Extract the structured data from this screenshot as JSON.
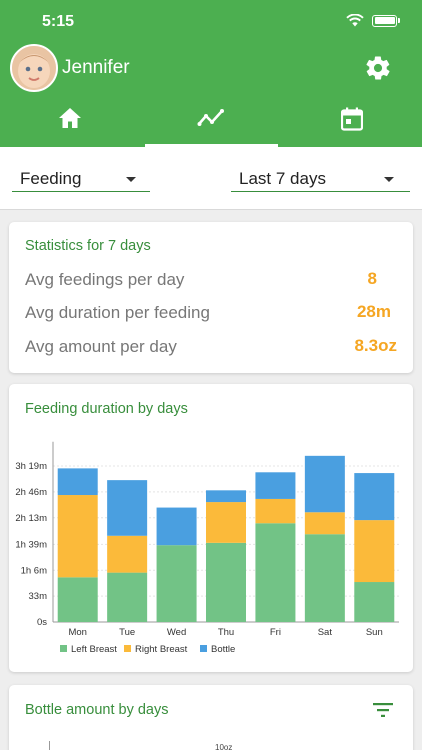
{
  "status_bar": {
    "time": "5:15",
    "wifi_icon": "wifi-icon",
    "battery_icon": "battery-icon"
  },
  "header": {
    "user_name": "Jennifer",
    "avatar": "baby-avatar",
    "settings_icon": "gear-icon",
    "tabs": [
      {
        "icon": "home-icon"
      },
      {
        "icon": "trend-line-icon",
        "active": true
      },
      {
        "icon": "calendar-icon"
      }
    ],
    "color": "#4caf50"
  },
  "filters": {
    "type_value": "Feeding",
    "range_value": "Last 7 days"
  },
  "statistics": {
    "title": "Statistics for 7 days",
    "rows": [
      {
        "label": "Avg feedings per day",
        "value": "8"
      },
      {
        "label": "Avg duration per feeding",
        "value": "28m"
      },
      {
        "label": "Avg amount per day",
        "value": "8.3oz"
      }
    ]
  },
  "duration_card": {
    "title": "Feeding duration by days"
  },
  "bottle_card": {
    "title": "Bottle amount by days",
    "filter_icon": "filter-icon",
    "partial_label": "10oz"
  },
  "chart_data": {
    "type": "bar",
    "stacked": true,
    "title": "Feeding duration by days",
    "categories": [
      "Mon",
      "Tue",
      "Wed",
      "Thu",
      "Fri",
      "Sat",
      "Sun"
    ],
    "y_ticks": [
      "0s",
      "33m",
      "1h 6m",
      "1h 39m",
      "2h 13m",
      "2h 46m",
      "3h 19m"
    ],
    "y_tick_minutes": [
      0,
      33,
      66,
      99,
      133,
      166,
      199
    ],
    "ylim": [
      0,
      230
    ],
    "legend_position": "bottom-left",
    "grid": true,
    "series": [
      {
        "name": "Left Breast",
        "color": "#72c386",
        "values": [
          57,
          63,
          98,
          101,
          126,
          112,
          51
        ]
      },
      {
        "name": "Right Breast",
        "color": "#fbba3a",
        "values": [
          105,
          47,
          0,
          52,
          31,
          28,
          79
        ]
      },
      {
        "name": "Bottle",
        "color": "#4a9fe0",
        "values": [
          34,
          71,
          48,
          15,
          34,
          72,
          60
        ]
      }
    ]
  }
}
